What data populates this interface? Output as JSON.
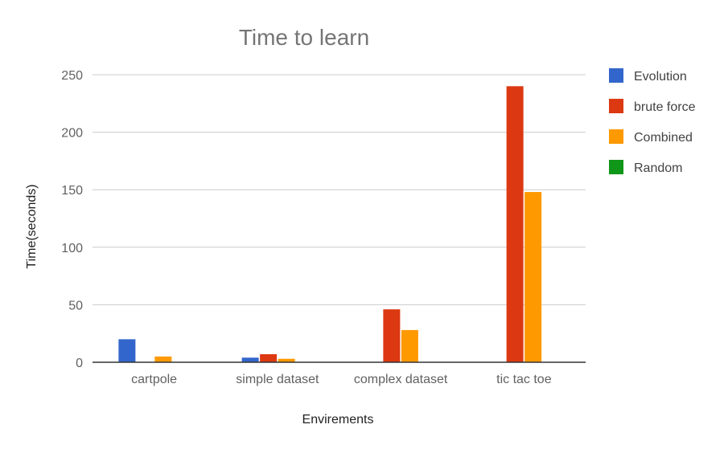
{
  "chart_data": {
    "type": "bar",
    "title": "Time to learn",
    "xlabel": "Envirements",
    "ylabel": "Time(seconds)",
    "categories": [
      "cartpole",
      "simple dataset",
      "complex dataset",
      "tic tac toe"
    ],
    "ylim": [
      0,
      250
    ],
    "yticks": [
      0,
      50,
      100,
      150,
      200,
      250
    ],
    "grid": true,
    "legend_position": "right",
    "series": [
      {
        "name": "Evolution",
        "color": "#3366cc",
        "values": [
          20,
          4,
          0,
          0
        ]
      },
      {
        "name": "brute force",
        "color": "#dc3912",
        "values": [
          0,
          7,
          46,
          240
        ]
      },
      {
        "name": "Combined",
        "color": "#ff9900",
        "values": [
          5,
          3,
          28,
          148
        ]
      },
      {
        "name": "Random",
        "color": "#109618",
        "values": [
          0,
          0,
          0,
          0
        ]
      }
    ]
  }
}
